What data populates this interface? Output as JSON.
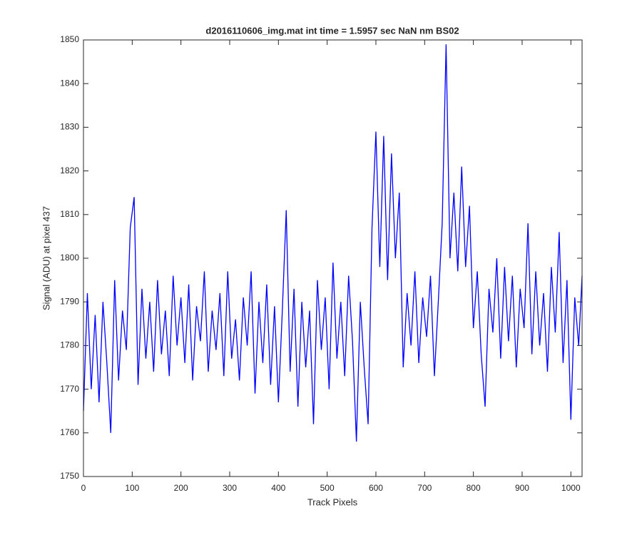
{
  "chart_data": {
    "type": "line",
    "title": "d2016110606_img.mat int time = 1.5957 sec  NaN nm BS02",
    "x_label": "Track Pixels",
    "y_label": "Signal (ADU) at pixel 437",
    "x": [
      0,
      8,
      16,
      24,
      32,
      40,
      48,
      56,
      64,
      72,
      80,
      88,
      96,
      104,
      112,
      120,
      128,
      136,
      144,
      152,
      160,
      168,
      176,
      184,
      192,
      200,
      208,
      216,
      224,
      232,
      240,
      248,
      256,
      264,
      272,
      280,
      288,
      296,
      304,
      312,
      320,
      328,
      336,
      344,
      352,
      360,
      368,
      376,
      384,
      392,
      400,
      408,
      416,
      424,
      432,
      440,
      448,
      456,
      464,
      472,
      480,
      488,
      496,
      504,
      512,
      520,
      528,
      536,
      544,
      552,
      560,
      568,
      576,
      584,
      592,
      600,
      608,
      616,
      624,
      632,
      640,
      648,
      656,
      664,
      672,
      680,
      688,
      696,
      704,
      712,
      720,
      728,
      736,
      744,
      752,
      760,
      768,
      776,
      784,
      792,
      800,
      808,
      816,
      824,
      832,
      840,
      848,
      856,
      864,
      872,
      880,
      888,
      896,
      904,
      912,
      920,
      928,
      936,
      944,
      952,
      960,
      968,
      976,
      984,
      992,
      1000,
      1008,
      1016,
      1023
    ],
    "series": [
      {
        "color": "#0000ff",
        "values": [
          1765,
          1792,
          1770,
          1787,
          1767,
          1790,
          1776,
          1760,
          1795,
          1772,
          1788,
          1779,
          1807,
          1814,
          1771,
          1793,
          1777,
          1790,
          1774,
          1795,
          1778,
          1788,
          1773,
          1796,
          1780,
          1791,
          1776,
          1794,
          1772,
          1789,
          1781,
          1797,
          1774,
          1788,
          1779,
          1792,
          1773,
          1797,
          1777,
          1786,
          1772,
          1791,
          1780,
          1797,
          1769,
          1790,
          1776,
          1794,
          1771,
          1789,
          1767,
          1788,
          1811,
          1774,
          1793,
          1766,
          1790,
          1775,
          1788,
          1762,
          1795,
          1779,
          1791,
          1770,
          1799,
          1777,
          1790,
          1773,
          1796,
          1781,
          1758,
          1790,
          1775,
          1762,
          1807,
          1829,
          1798,
          1828,
          1795,
          1824,
          1800,
          1815,
          1775,
          1792,
          1780,
          1797,
          1776,
          1791,
          1782,
          1796,
          1773,
          1790,
          1808,
          1849,
          1800,
          1815,
          1797,
          1821,
          1798,
          1812,
          1784,
          1797,
          1778,
          1766,
          1793,
          1783,
          1800,
          1777,
          1798,
          1781,
          1796,
          1775,
          1793,
          1784,
          1808,
          1778,
          1797,
          1780,
          1792,
          1774,
          1798,
          1783,
          1806,
          1776,
          1795,
          1763,
          1791,
          1780,
          1796
        ]
      }
    ],
    "xlim": [
      0,
      1023
    ],
    "ylim": [
      1750,
      1850
    ],
    "xticks": [
      0,
      100,
      200,
      300,
      400,
      500,
      600,
      700,
      800,
      900,
      1000
    ],
    "yticks": [
      1750,
      1760,
      1770,
      1780,
      1790,
      1800,
      1810,
      1820,
      1830,
      1840,
      1850
    ]
  }
}
